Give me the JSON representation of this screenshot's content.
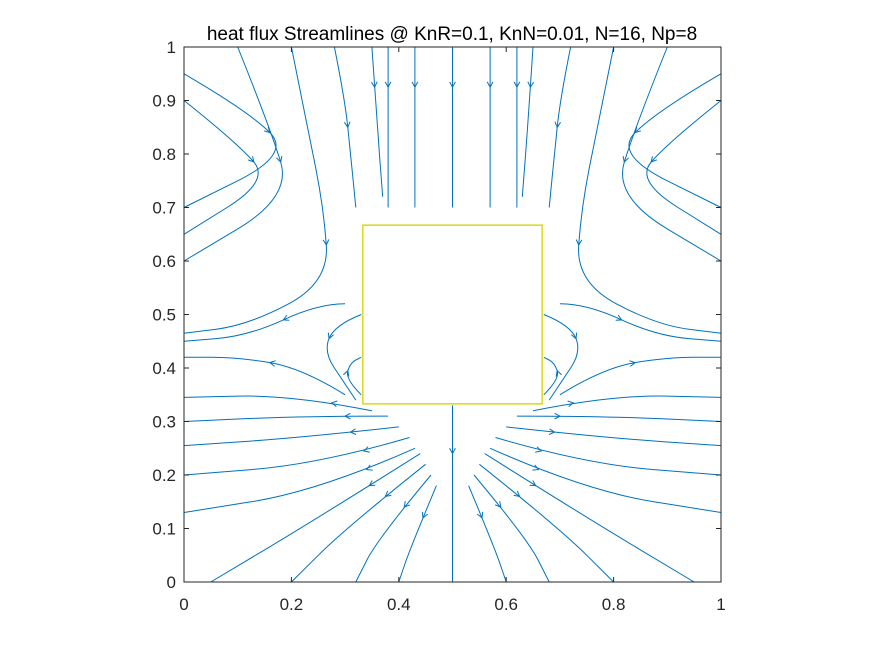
{
  "chart_data": {
    "type": "streamline",
    "title": "heat flux Streamlines @ KnR=0.1, KnN=0.01, N=16, Np=8",
    "xlabel": "",
    "ylabel": "",
    "xlim": [
      0,
      1
    ],
    "ylim": [
      0,
      1
    ],
    "xticks": [
      "0",
      "0.2",
      "0.4",
      "0.6",
      "0.8",
      "1"
    ],
    "yticks": [
      "0",
      "0.1",
      "0.2",
      "0.3",
      "0.4",
      "0.5",
      "0.6",
      "0.7",
      "0.8",
      "0.9",
      "1"
    ],
    "obstacle": {
      "x": [
        0.333,
        0.667
      ],
      "y": [
        0.333,
        0.667
      ]
    },
    "grid": false,
    "colors": {
      "streamline": "#0072BD",
      "obstacle_edge": "#D9D919",
      "axis": "#262626"
    },
    "streamlines": [
      {
        "points": [
          [
            0.28,
            1.0
          ],
          [
            0.3,
            0.9
          ],
          [
            0.31,
            0.8
          ],
          [
            0.32,
            0.7
          ]
        ]
      },
      {
        "points": [
          [
            0.35,
            1.0
          ],
          [
            0.36,
            0.85
          ],
          [
            0.37,
            0.72
          ]
        ]
      },
      {
        "points": [
          [
            0.38,
            1.0
          ],
          [
            0.38,
            0.85
          ],
          [
            0.38,
            0.7
          ]
        ]
      },
      {
        "points": [
          [
            0.43,
            1.0
          ],
          [
            0.43,
            0.85
          ],
          [
            0.43,
            0.7
          ]
        ]
      },
      {
        "points": [
          [
            0.5,
            1.0
          ],
          [
            0.5,
            0.85
          ],
          [
            0.5,
            0.7
          ]
        ]
      },
      {
        "points": [
          [
            0.57,
            1.0
          ],
          [
            0.57,
            0.85
          ],
          [
            0.57,
            0.7
          ]
        ]
      },
      {
        "points": [
          [
            0.62,
            1.0
          ],
          [
            0.62,
            0.85
          ],
          [
            0.62,
            0.7
          ]
        ]
      },
      {
        "points": [
          [
            0.65,
            1.0
          ],
          [
            0.64,
            0.85
          ],
          [
            0.63,
            0.72
          ]
        ]
      },
      {
        "points": [
          [
            0.72,
            1.0
          ],
          [
            0.7,
            0.9
          ],
          [
            0.69,
            0.8
          ],
          [
            0.68,
            0.7
          ]
        ]
      },
      {
        "points": [
          [
            0.2,
            1.0
          ],
          [
            0.23,
            0.85
          ],
          [
            0.26,
            0.7
          ],
          [
            0.27,
            0.56
          ],
          [
            0.12,
            0.48
          ],
          [
            0.0,
            0.465
          ]
        ]
      },
      {
        "points": [
          [
            0.8,
            1.0
          ],
          [
            0.77,
            0.85
          ],
          [
            0.74,
            0.7
          ],
          [
            0.73,
            0.56
          ],
          [
            0.88,
            0.48
          ],
          [
            1.0,
            0.465
          ]
        ]
      },
      {
        "points": [
          [
            0.1,
            1.0
          ],
          [
            0.16,
            0.85
          ],
          [
            0.2,
            0.72
          ],
          [
            0.0,
            0.6
          ]
        ]
      },
      {
        "points": [
          [
            0.9,
            1.0
          ],
          [
            0.84,
            0.85
          ],
          [
            0.8,
            0.72
          ],
          [
            1.0,
            0.6
          ]
        ]
      },
      {
        "points": [
          [
            0.0,
            0.95
          ],
          [
            0.12,
            0.88
          ],
          [
            0.2,
            0.8
          ],
          [
            0.0,
            0.7
          ]
        ]
      },
      {
        "points": [
          [
            1.0,
            0.95
          ],
          [
            0.88,
            0.88
          ],
          [
            0.8,
            0.8
          ],
          [
            1.0,
            0.7
          ]
        ]
      },
      {
        "points": [
          [
            0.0,
            0.9
          ],
          [
            0.1,
            0.82
          ],
          [
            0.16,
            0.75
          ],
          [
            0.0,
            0.65
          ]
        ]
      },
      {
        "points": [
          [
            1.0,
            0.9
          ],
          [
            0.9,
            0.82
          ],
          [
            0.84,
            0.75
          ],
          [
            1.0,
            0.65
          ]
        ]
      },
      {
        "points": [
          [
            0.3,
            0.52
          ],
          [
            0.25,
            0.52
          ],
          [
            0.12,
            0.46
          ],
          [
            0.0,
            0.45
          ]
        ]
      },
      {
        "points": [
          [
            0.7,
            0.52
          ],
          [
            0.75,
            0.52
          ],
          [
            0.88,
            0.46
          ],
          [
            1.0,
            0.45
          ]
        ]
      },
      {
        "points": [
          [
            0.33,
            0.5
          ],
          [
            0.28,
            0.48
          ],
          [
            0.26,
            0.43
          ],
          [
            0.3,
            0.37
          ],
          [
            0.32,
            0.34
          ]
        ]
      },
      {
        "points": [
          [
            0.67,
            0.5
          ],
          [
            0.72,
            0.48
          ],
          [
            0.74,
            0.43
          ],
          [
            0.7,
            0.37
          ],
          [
            0.68,
            0.34
          ]
        ]
      },
      {
        "points": [
          [
            0.33,
            0.35
          ],
          [
            0.3,
            0.38
          ],
          [
            0.31,
            0.41
          ],
          [
            0.33,
            0.42
          ]
        ]
      },
      {
        "points": [
          [
            0.67,
            0.35
          ],
          [
            0.7,
            0.38
          ],
          [
            0.69,
            0.41
          ],
          [
            0.67,
            0.42
          ]
        ]
      },
      {
        "points": [
          [
            0.3,
            0.35
          ],
          [
            0.22,
            0.4
          ],
          [
            0.1,
            0.42
          ],
          [
            0.0,
            0.42
          ]
        ]
      },
      {
        "points": [
          [
            0.7,
            0.35
          ],
          [
            0.78,
            0.4
          ],
          [
            0.9,
            0.42
          ],
          [
            1.0,
            0.42
          ]
        ]
      },
      {
        "points": [
          [
            0.35,
            0.32
          ],
          [
            0.2,
            0.35
          ],
          [
            0.0,
            0.345
          ]
        ]
      },
      {
        "points": [
          [
            0.65,
            0.32
          ],
          [
            0.8,
            0.35
          ],
          [
            1.0,
            0.345
          ]
        ]
      },
      {
        "points": [
          [
            0.38,
            0.31
          ],
          [
            0.22,
            0.31
          ],
          [
            0.0,
            0.3
          ]
        ]
      },
      {
        "points": [
          [
            0.62,
            0.31
          ],
          [
            0.78,
            0.31
          ],
          [
            1.0,
            0.3
          ]
        ]
      },
      {
        "points": [
          [
            0.4,
            0.29
          ],
          [
            0.22,
            0.27
          ],
          [
            0.0,
            0.255
          ]
        ]
      },
      {
        "points": [
          [
            0.6,
            0.29
          ],
          [
            0.78,
            0.27
          ],
          [
            1.0,
            0.255
          ]
        ]
      },
      {
        "points": [
          [
            0.42,
            0.27
          ],
          [
            0.25,
            0.22
          ],
          [
            0.0,
            0.2
          ]
        ]
      },
      {
        "points": [
          [
            0.58,
            0.27
          ],
          [
            0.75,
            0.22
          ],
          [
            1.0,
            0.2
          ]
        ]
      },
      {
        "points": [
          [
            0.43,
            0.25
          ],
          [
            0.25,
            0.17
          ],
          [
            0.0,
            0.13
          ]
        ]
      },
      {
        "points": [
          [
            0.57,
            0.25
          ],
          [
            0.75,
            0.17
          ],
          [
            1.0,
            0.13
          ]
        ]
      },
      {
        "points": [
          [
            0.44,
            0.24
          ],
          [
            0.25,
            0.12
          ],
          [
            0.05,
            0.0
          ]
        ]
      },
      {
        "points": [
          [
            0.56,
            0.24
          ],
          [
            0.75,
            0.12
          ],
          [
            0.95,
            0.0
          ]
        ]
      },
      {
        "points": [
          [
            0.45,
            0.22
          ],
          [
            0.3,
            0.1
          ],
          [
            0.2,
            0.0
          ]
        ]
      },
      {
        "points": [
          [
            0.55,
            0.22
          ],
          [
            0.7,
            0.1
          ],
          [
            0.8,
            0.0
          ]
        ]
      },
      {
        "points": [
          [
            0.46,
            0.2
          ],
          [
            0.36,
            0.08
          ],
          [
            0.32,
            0.0
          ]
        ]
      },
      {
        "points": [
          [
            0.54,
            0.2
          ],
          [
            0.64,
            0.08
          ],
          [
            0.68,
            0.0
          ]
        ]
      },
      {
        "points": [
          [
            0.47,
            0.18
          ],
          [
            0.42,
            0.06
          ],
          [
            0.4,
            0.0
          ]
        ]
      },
      {
        "points": [
          [
            0.53,
            0.18
          ],
          [
            0.58,
            0.06
          ],
          [
            0.6,
            0.0
          ]
        ]
      },
      {
        "points": [
          [
            0.5,
            0.33
          ],
          [
            0.5,
            0.15
          ],
          [
            0.5,
            0.0
          ]
        ]
      }
    ]
  }
}
